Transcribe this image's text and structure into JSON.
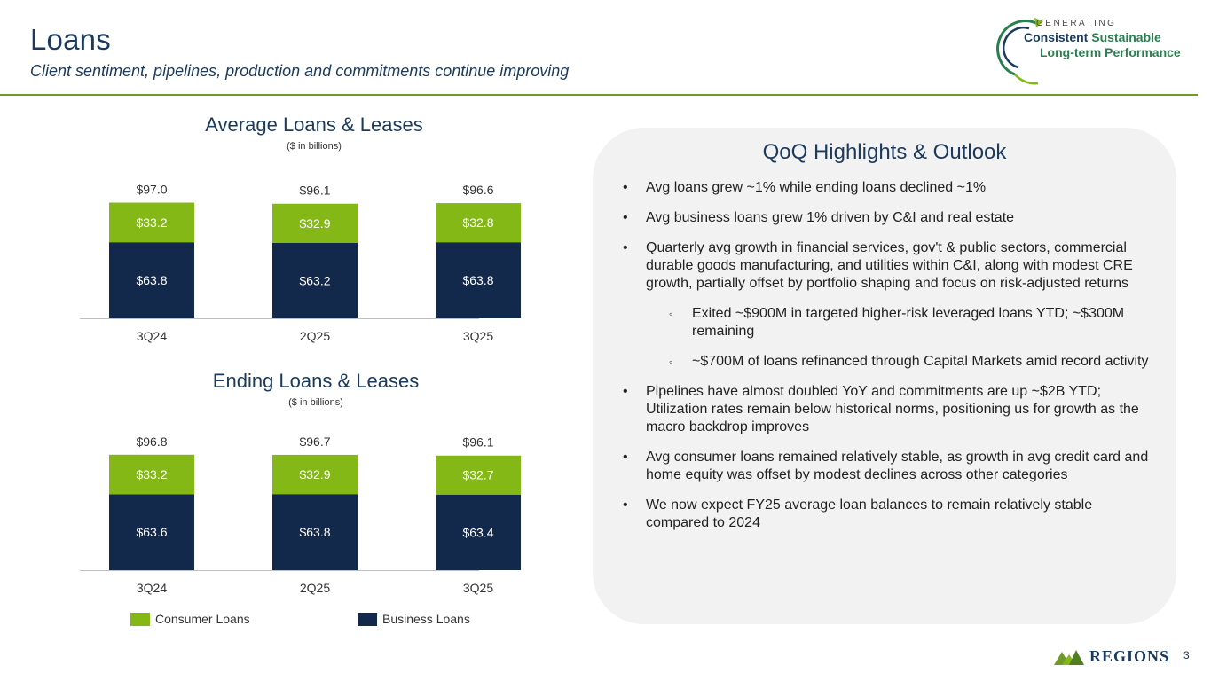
{
  "header": {
    "title": "Loans",
    "subtitle": "Client sentiment, pipelines, production and commitments continue improving"
  },
  "logo": {
    "line0": "GENERATING",
    "line1a": "Consistent ",
    "line1b": "Sustainable",
    "line2": "Long-term Performance"
  },
  "colors": {
    "consumer": "#84b817",
    "business": "#13294b",
    "accent_rule": "#6f9a27",
    "brand_blue": "#1b3a5c"
  },
  "chart_data": [
    {
      "type": "bar",
      "stacked": true,
      "title": "Average Loans & Leases",
      "subtitle": "($ in billions)",
      "categories": [
        "3Q24",
        "2Q25",
        "3Q25"
      ],
      "series": [
        {
          "name": "Business Loans",
          "values": [
            63.8,
            63.2,
            63.8
          ],
          "labels": [
            "$63.8",
            "$63.2",
            "$63.8"
          ]
        },
        {
          "name": "Consumer Loans",
          "values": [
            33.2,
            32.9,
            32.8
          ],
          "labels": [
            "$33.2",
            "$32.9",
            "$32.8"
          ]
        }
      ],
      "totals": [
        97.0,
        96.1,
        96.6
      ],
      "total_labels": [
        "$97.0",
        "$96.1",
        "$96.6"
      ]
    },
    {
      "type": "bar",
      "stacked": true,
      "title": "Ending Loans & Leases",
      "subtitle": "($ in billions)",
      "categories": [
        "3Q24",
        "2Q25",
        "3Q25"
      ],
      "series": [
        {
          "name": "Business Loans",
          "values": [
            63.6,
            63.8,
            63.4
          ],
          "labels": [
            "$63.6",
            "$63.8",
            "$63.4"
          ]
        },
        {
          "name": "Consumer Loans",
          "values": [
            33.2,
            32.9,
            32.7
          ],
          "labels": [
            "$33.2",
            "$32.9",
            "$32.7"
          ]
        }
      ],
      "totals": [
        96.8,
        96.7,
        96.1
      ],
      "total_labels": [
        "$96.8",
        "$96.7",
        "$96.1"
      ]
    }
  ],
  "legend": {
    "consumer": "Consumer Loans",
    "business": "Business Loans"
  },
  "panel": {
    "title": "QoQ Highlights & Outlook",
    "bullets": [
      {
        "level": 1,
        "marker": "•",
        "text": "Avg loans grew ~1% while ending loans declined ~1%"
      },
      {
        "level": 1,
        "marker": "•",
        "text": "Avg business loans grew 1% driven by C&I and real estate"
      },
      {
        "level": 1,
        "marker": "•",
        "text": "Quarterly avg growth in financial services, gov't & public sectors, commercial durable goods manufacturing, and utilities within C&I, along with modest CRE growth, partially offset by portfolio shaping and focus on risk-adjusted returns"
      },
      {
        "level": 2,
        "marker": "◦",
        "text": "Exited ~$900M in targeted higher-risk leveraged loans YTD; ~$300M remaining"
      },
      {
        "level": 2,
        "marker": "◦",
        "text": "~$700M of loans refinanced through Capital Markets amid record activity"
      },
      {
        "level": 1,
        "marker": "•",
        "text": "Pipelines have almost doubled YoY and commitments are up ~$2B YTD; Utilization rates remain below historical norms, positioning us for growth as the macro backdrop improves"
      },
      {
        "level": 1,
        "marker": "•",
        "text": "Avg consumer loans remained relatively stable, as growth in avg credit card and home equity was offset by modest declines across other categories"
      },
      {
        "level": 1,
        "marker": "•",
        "text": "We now expect FY25 average loan balances to remain relatively stable compared to 2024"
      }
    ]
  },
  "footer": {
    "brand": "REGIONS",
    "page": "3"
  }
}
